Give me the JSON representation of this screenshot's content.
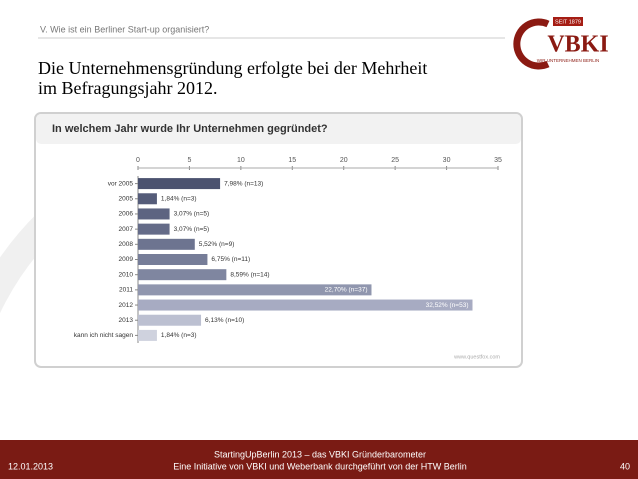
{
  "header": {
    "section": "V. Wie ist ein Berliner Start-up organisiert?",
    "logo": "VBKI",
    "since": "SEIT 1879",
    "slogan": "WIR UNTERNEHMEN BERLIN"
  },
  "headline": [
    "Die Unternehmensgründung erfolgte bei der Mehrheit",
    "im Befragungsjahr 2012."
  ],
  "chart_data": {
    "type": "bar",
    "orientation": "horizontal",
    "title": "In welchem Jahr wurde Ihr Unternehmen gegründet?",
    "categories": [
      "vor 2005",
      "2005",
      "2006",
      "2007",
      "2008",
      "2009",
      "2010",
      "2011",
      "2012",
      "2013",
      "kann ich nicht sagen"
    ],
    "values": [
      7.98,
      1.84,
      3.07,
      3.07,
      5.52,
      6.75,
      8.59,
      22.7,
      32.52,
      6.13,
      1.84
    ],
    "value_labels": [
      "7,98% (n=13)",
      "1,84% (n=3)",
      "3,07% (n=5)",
      "3,07% (n=5)",
      "5,52% (n=9)",
      "6,75% (n=11)",
      "8,59% (n=14)",
      "22,70% (n=37)",
      "32,52% (n=53)",
      "6,13% (n=10)",
      "1,84% (n=3)"
    ],
    "colors": [
      "#4b526f",
      "#555c79",
      "#5d6481",
      "#646b88",
      "#6d7490",
      "#767d98",
      "#7f86a0",
      "#9096ae",
      "#a7abc2",
      "#bcc0d1",
      "#cfd2de"
    ],
    "xlim": [
      0,
      35
    ],
    "xticks": [
      0,
      5,
      10,
      15,
      20,
      25,
      30,
      35
    ],
    "source": "www.questfox.com"
  },
  "footer": {
    "date": "12.01.2013",
    "line1": "StartingUpBerlin 2013 – das VBKI Gründerbarometer",
    "line2": "Eine Initiative von VBKI und Weberbank durchgeführt von der HTW Berlin",
    "page": "40"
  }
}
